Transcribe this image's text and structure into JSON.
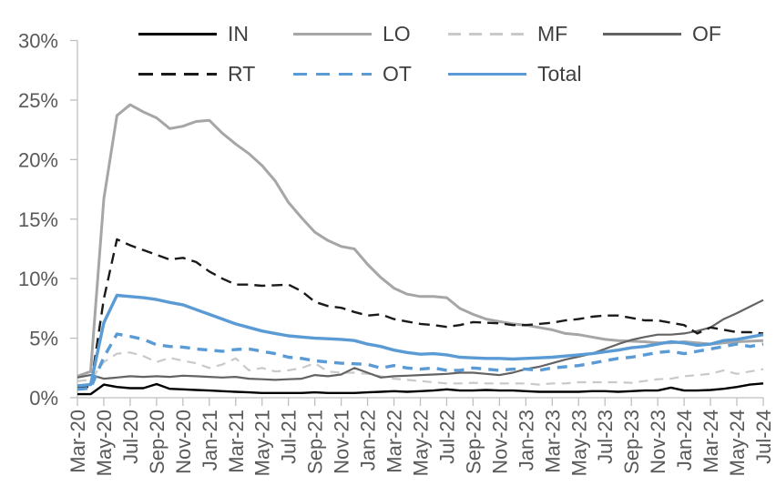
{
  "chart_data": {
    "type": "line",
    "title": "",
    "background_color": "#ffffff",
    "axis_color": "#BFBFBF",
    "tick_label_color": "#595959",
    "legend_text_color": "#404040",
    "accent_blue": "#5B9BD5",
    "grid": false,
    "legend_position": "top",
    "y_axis": {
      "min": 0,
      "max": 30,
      "step": 5,
      "tick_labels": [
        "0%",
        "5%",
        "10%",
        "15%",
        "20%",
        "25%",
        "30%"
      ]
    },
    "x_axis": {
      "months": [
        "Mar-20",
        "Apr-20",
        "May-20",
        "Jun-20",
        "Jul-20",
        "Aug-20",
        "Sep-20",
        "Oct-20",
        "Nov-20",
        "Dec-20",
        "Jan-21",
        "Feb-21",
        "Mar-21",
        "Apr-21",
        "May-21",
        "Jun-21",
        "Jul-21",
        "Aug-21",
        "Sep-21",
        "Oct-21",
        "Nov-21",
        "Dec-21",
        "Jan-22",
        "Feb-22",
        "Mar-22",
        "Apr-22",
        "May-22",
        "Jun-22",
        "Jul-22",
        "Aug-22",
        "Sep-22",
        "Oct-22",
        "Nov-22",
        "Dec-22",
        "Jan-23",
        "Feb-23",
        "Mar-23",
        "Apr-23",
        "May-23",
        "Jun-23",
        "Jul-23",
        "Aug-23",
        "Sep-23",
        "Oct-23",
        "Nov-23",
        "Dec-23",
        "Jan-24",
        "Feb-24",
        "Mar-24",
        "Apr-24",
        "May-24",
        "Jun-24",
        "Jul-24"
      ],
      "tick_every": 2,
      "tick_labels": [
        "Mar-20",
        "May-20",
        "Jul-20",
        "Sep-20",
        "Nov-20",
        "Jan-21",
        "Mar-21",
        "May-21",
        "Jul-21",
        "Sep-21",
        "Nov-21",
        "Jan-22",
        "Mar-22",
        "May-22",
        "Jul-22",
        "Sep-22",
        "Nov-22",
        "Jan-23",
        "Mar-23",
        "May-23",
        "Jul-23",
        "Sep-23",
        "Nov-23",
        "Jan-24",
        "Mar-24",
        "May-24",
        "Jul-24"
      ]
    },
    "series": [
      {
        "name": "IN",
        "color": "#000000",
        "style": "solid",
        "dash": "none",
        "width": 2.4,
        "values": [
          0.3,
          0.3,
          1.1,
          0.9,
          0.8,
          0.8,
          1.15,
          0.75,
          0.7,
          0.65,
          0.6,
          0.55,
          0.5,
          0.45,
          0.4,
          0.4,
          0.4,
          0.4,
          0.45,
          0.4,
          0.4,
          0.4,
          0.45,
          0.5,
          0.55,
          0.5,
          0.55,
          0.6,
          0.7,
          0.6,
          0.6,
          0.65,
          0.6,
          0.6,
          0.55,
          0.5,
          0.5,
          0.5,
          0.5,
          0.55,
          0.55,
          0.5,
          0.55,
          0.6,
          0.6,
          0.85,
          0.6,
          0.6,
          0.65,
          0.75,
          0.9,
          1.1,
          1.2
        ]
      },
      {
        "name": "LO",
        "color": "#A6A6A6",
        "style": "solid",
        "dash": "none",
        "width": 3,
        "values": [
          1.8,
          2.2,
          16.7,
          23.7,
          24.6,
          24.0,
          23.5,
          22.6,
          22.8,
          23.2,
          23.3,
          22.2,
          21.3,
          20.5,
          19.5,
          18.2,
          16.4,
          15.1,
          13.9,
          13.2,
          12.7,
          12.5,
          11.2,
          10.1,
          9.2,
          8.7,
          8.5,
          8.5,
          8.4,
          7.5,
          7.0,
          6.6,
          6.4,
          6.2,
          6.1,
          5.9,
          5.7,
          5.4,
          5.3,
          5.1,
          4.9,
          4.8,
          4.75,
          4.7,
          4.6,
          4.6,
          4.7,
          4.6,
          4.5,
          4.6,
          4.7,
          4.75,
          4.8
        ]
      },
      {
        "name": "MF",
        "color": "#C9C9C9",
        "style": "dashed",
        "dash": "10 7",
        "width": 2.2,
        "values": [
          1.4,
          1.5,
          3.0,
          3.7,
          3.8,
          3.5,
          3.0,
          3.35,
          3.1,
          2.9,
          2.5,
          2.8,
          3.3,
          2.3,
          2.5,
          2.2,
          2.3,
          2.5,
          2.9,
          2.2,
          2.1,
          2.1,
          2.0,
          1.8,
          1.6,
          1.5,
          1.4,
          1.3,
          1.2,
          1.2,
          1.25,
          1.2,
          1.2,
          1.2,
          1.2,
          1.1,
          1.2,
          1.2,
          1.3,
          1.3,
          1.3,
          1.3,
          1.25,
          1.4,
          1.55,
          1.6,
          1.8,
          1.9,
          2.0,
          2.3,
          2.0,
          2.2,
          2.4
        ]
      },
      {
        "name": "OF",
        "color": "#636363",
        "style": "solid",
        "dash": "none",
        "width": 2.2,
        "values": [
          1.7,
          1.9,
          1.6,
          1.7,
          1.8,
          1.75,
          1.8,
          1.75,
          1.85,
          1.8,
          1.75,
          1.7,
          1.75,
          1.6,
          1.55,
          1.5,
          1.55,
          1.6,
          1.9,
          1.8,
          1.95,
          2.5,
          2.1,
          1.7,
          1.8,
          1.85,
          1.9,
          1.95,
          2.0,
          2.1,
          2.1,
          2.0,
          1.9,
          2.1,
          2.4,
          2.6,
          2.9,
          3.2,
          3.45,
          3.7,
          4.1,
          4.5,
          4.85,
          5.1,
          5.3,
          5.3,
          5.4,
          5.6,
          5.9,
          6.6,
          7.1,
          7.65,
          8.2
        ]
      },
      {
        "name": "RT",
        "color": "#1A1A1A",
        "style": "dashed",
        "dash": "12 7",
        "width": 2.4,
        "values": [
          0.9,
          0.9,
          8.3,
          13.3,
          12.8,
          12.4,
          12.0,
          11.6,
          11.75,
          11.4,
          10.6,
          10.0,
          9.5,
          9.5,
          9.4,
          9.45,
          9.5,
          8.95,
          8.05,
          7.7,
          7.55,
          7.2,
          6.9,
          7.0,
          6.6,
          6.4,
          6.2,
          6.1,
          5.95,
          6.1,
          6.35,
          6.3,
          6.25,
          6.1,
          6.1,
          6.2,
          6.3,
          6.5,
          6.6,
          6.8,
          6.9,
          6.9,
          6.7,
          6.5,
          6.5,
          6.3,
          6.1,
          5.4,
          5.9,
          5.7,
          5.5,
          5.5,
          5.4
        ]
      },
      {
        "name": "OT",
        "color": "#5B9BD5",
        "style": "dashed",
        "dash": "11 8",
        "width": 3.4,
        "values": [
          0.7,
          0.8,
          3.4,
          5.35,
          5.15,
          4.9,
          4.45,
          4.3,
          4.25,
          4.1,
          4.0,
          3.9,
          4.05,
          4.1,
          3.9,
          3.7,
          3.4,
          3.3,
          3.1,
          3.0,
          2.9,
          2.85,
          2.8,
          2.5,
          2.7,
          2.5,
          2.4,
          2.5,
          2.3,
          2.3,
          2.5,
          2.4,
          2.3,
          2.4,
          2.4,
          2.3,
          2.5,
          2.6,
          2.7,
          2.9,
          3.1,
          3.3,
          3.4,
          3.6,
          3.8,
          3.9,
          3.7,
          3.9,
          4.1,
          4.3,
          4.5,
          4.3,
          4.5
        ]
      },
      {
        "name": "Total",
        "color": "#5B9BD5",
        "style": "solid",
        "dash": "none",
        "width": 3.4,
        "values": [
          1.0,
          1.1,
          6.3,
          8.6,
          8.5,
          8.4,
          8.25,
          8.0,
          7.8,
          7.4,
          7.0,
          6.6,
          6.2,
          5.9,
          5.6,
          5.4,
          5.2,
          5.1,
          5.0,
          4.95,
          4.9,
          4.8,
          4.5,
          4.3,
          4.0,
          3.8,
          3.65,
          3.7,
          3.6,
          3.4,
          3.35,
          3.3,
          3.3,
          3.25,
          3.3,
          3.35,
          3.4,
          3.5,
          3.6,
          3.7,
          3.85,
          4.0,
          4.2,
          4.3,
          4.5,
          4.7,
          4.6,
          4.4,
          4.5,
          4.8,
          4.9,
          5.1,
          5.3
        ]
      }
    ]
  }
}
